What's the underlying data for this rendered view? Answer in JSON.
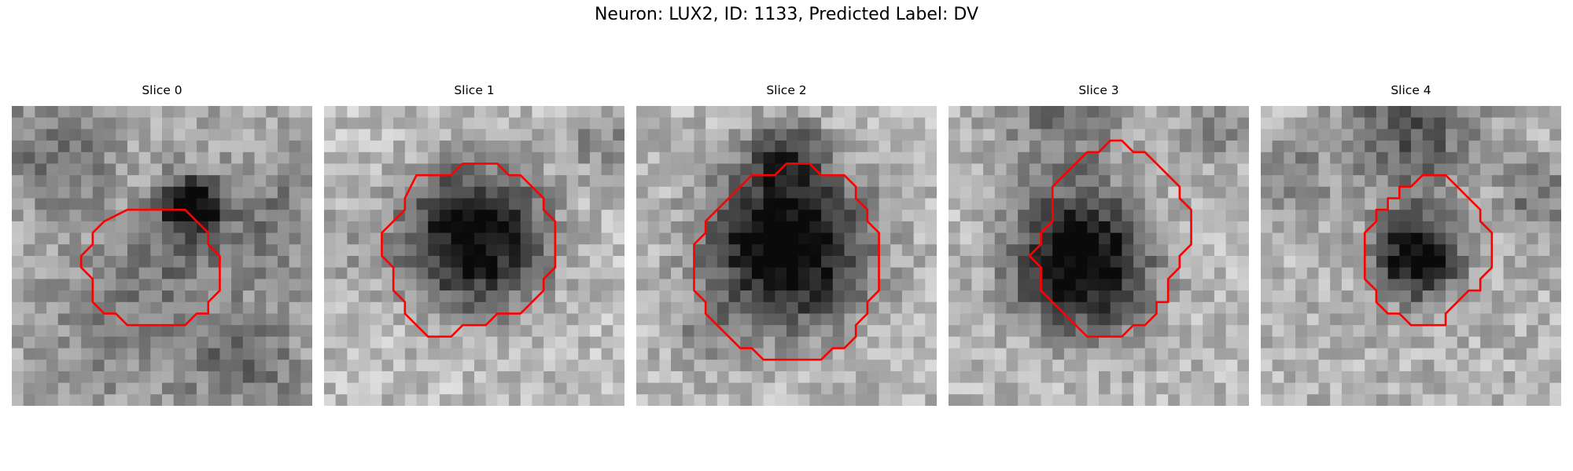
{
  "figure": {
    "title": "Neuron: LUX2, ID: 1133, Predicted Label: DV",
    "contour_color": "#ff0000",
    "colormap": "grayscale"
  },
  "slices": [
    {
      "title": "Slice 0"
    },
    {
      "title": "Slice 1"
    },
    {
      "title": "Slice 2"
    },
    {
      "title": "Slice 3"
    },
    {
      "title": "Slice 4"
    }
  ]
}
